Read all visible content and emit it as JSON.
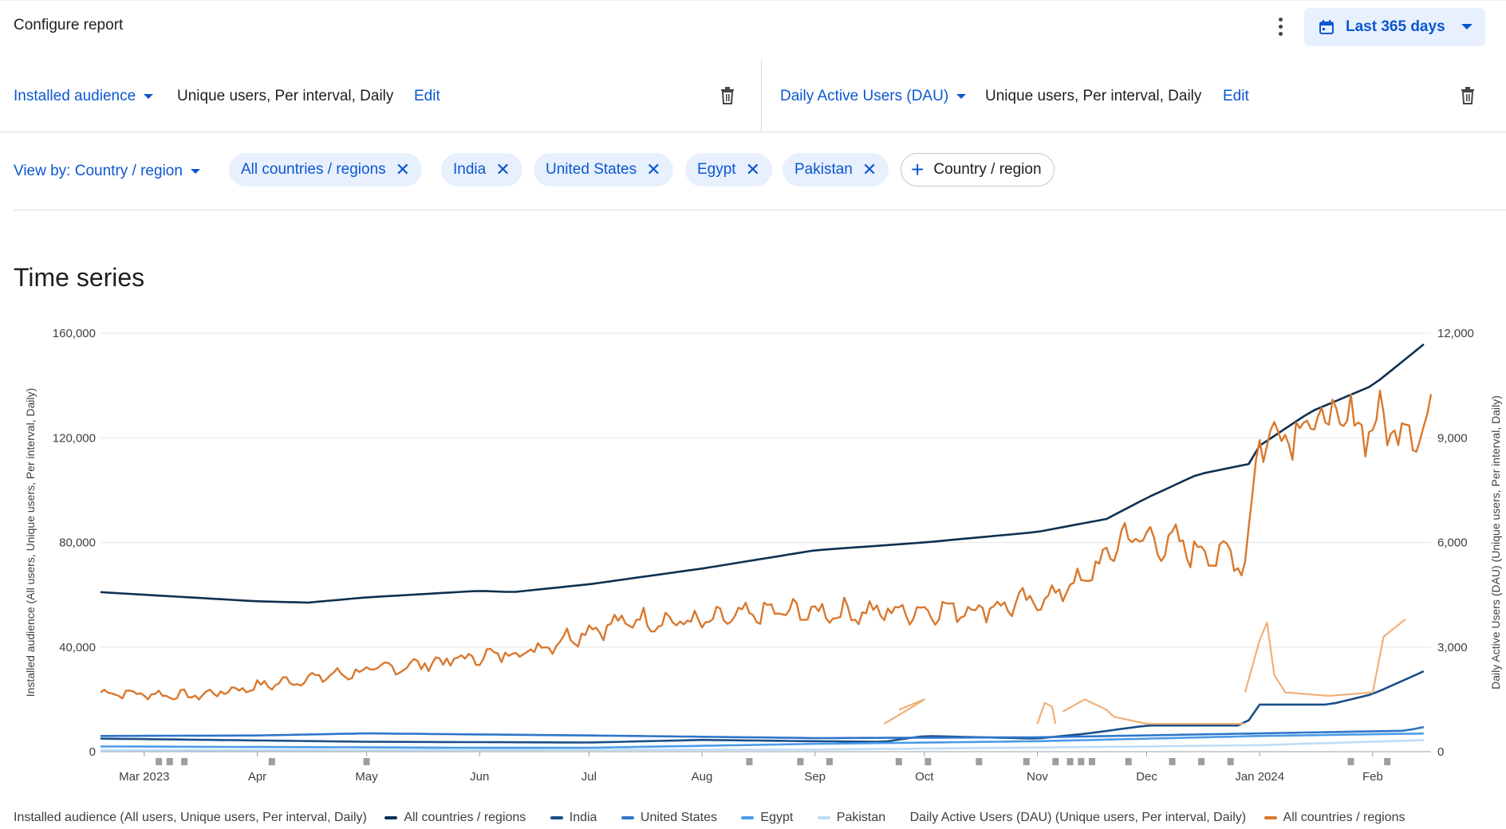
{
  "header": {
    "title": "Configure report",
    "date_range_label": "Last 365 days"
  },
  "metrics": {
    "left": {
      "selector_label": "Installed audience",
      "description": "Unique users, Per interval, Daily",
      "edit_label": "Edit"
    },
    "right": {
      "selector_label": "Daily Active Users (DAU)",
      "description": "Unique users, Per interval, Daily",
      "edit_label": "Edit"
    }
  },
  "filters": {
    "view_by_label": "View by: Country / region",
    "chips": [
      "All countries / regions",
      "India",
      "United States",
      "Egypt",
      "Pakistan"
    ],
    "add_label": "Country / region"
  },
  "section": {
    "title": "Time series"
  },
  "colors": {
    "all_countries": "#0d3050",
    "india": "#1a4f8a",
    "united_states": "#2e75c9",
    "egypt": "#4c9be8",
    "pakistan": "#bfdcf7",
    "dau_all": "#d9782d",
    "dau_light": "#f0b07a"
  },
  "chart_data": {
    "type": "line",
    "title": "",
    "x_axis_ticks": [
      "Mar 2023",
      "Apr",
      "May",
      "Jun",
      "Jul",
      "Aug",
      "Sep",
      "Oct",
      "Nov",
      "Dec",
      "Jan 2024",
      "Feb"
    ],
    "x_range": [
      "2023-02-17",
      "2024-02-17"
    ],
    "y_left": {
      "label": "Installed audience (All users, Unique users, Per interval, Daily)",
      "ticks": [
        "0",
        "40,000",
        "80,000",
        "120,000",
        "160,000"
      ],
      "range": [
        0,
        160000
      ]
    },
    "y_right": {
      "label": "Daily Active Users (DAU) (Unique users, Per interval, Daily)",
      "ticks": [
        "0",
        "3,000",
        "6,000",
        "9,000",
        "12,000"
      ],
      "range": [
        0,
        12000
      ]
    },
    "grid": true,
    "legend_placement": "bottom",
    "legend": {
      "left_group_title": "Installed audience (All users, Unique users, Per interval, Daily)",
      "left_items": [
        "All countries / regions",
        "India",
        "United States",
        "Egypt",
        "Pakistan"
      ],
      "right_group_title": "Daily Active Users (DAU) (Unique users, Per interval, Daily)",
      "right_items": [
        "All countries / regions"
      ]
    },
    "series": [
      {
        "name": "All countries / regions",
        "axis": "left",
        "color": "#0d3050",
        "x": [
          "2023-02-17",
          "2023-03-01",
          "2023-04-01",
          "2023-04-15",
          "2023-05-01",
          "2023-06-01",
          "2023-06-10",
          "2023-07-01",
          "2023-08-01",
          "2023-09-01",
          "2023-10-01",
          "2023-11-01",
          "2023-11-20",
          "2023-12-01",
          "2023-12-15",
          "2023-12-29",
          "2024-01-01",
          "2024-01-15",
          "2024-02-01",
          "2024-02-17"
        ],
        "values": [
          61000,
          60000,
          57500,
          57000,
          59000,
          61500,
          61000,
          64000,
          70000,
          77000,
          80000,
          84000,
          89000,
          97000,
          106000,
          110000,
          117000,
          130000,
          140000,
          158000
        ]
      },
      {
        "name": "India",
        "axis": "left",
        "color": "#1a4f8a",
        "x": [
          "2023-02-17",
          "2023-05-01",
          "2023-07-01",
          "2023-08-01",
          "2023-09-01",
          "2023-09-20",
          "2023-10-01",
          "2023-11-01",
          "2023-11-15",
          "2023-12-01",
          "2023-12-28",
          "2024-01-01",
          "2024-01-20",
          "2024-02-01",
          "2024-02-17"
        ],
        "values": [
          5000,
          3800,
          3500,
          4500,
          4000,
          3800,
          6000,
          5000,
          7000,
          10000,
          10000,
          18000,
          18000,
          22000,
          32000
        ]
      },
      {
        "name": "United States",
        "axis": "left",
        "color": "#2e75c9",
        "x": [
          "2023-02-17",
          "2023-04-01",
          "2023-05-01",
          "2023-07-01",
          "2023-09-01",
          "2023-11-01",
          "2024-01-01",
          "2024-02-10",
          "2024-02-17"
        ],
        "values": [
          6000,
          6200,
          7000,
          6200,
          5200,
          5500,
          7000,
          8000,
          10000
        ]
      },
      {
        "name": "Egypt",
        "axis": "left",
        "color": "#4c9be8",
        "x": [
          "2023-02-17",
          "2023-06-01",
          "2023-07-01",
          "2023-09-01",
          "2023-11-01",
          "2024-01-01",
          "2024-02-17"
        ],
        "values": [
          2000,
          1500,
          1500,
          3000,
          4000,
          6000,
          7000
        ]
      },
      {
        "name": "Pakistan",
        "axis": "left",
        "color": "#bfdcf7",
        "x": [
          "2023-02-17",
          "2023-09-01",
          "2023-12-01",
          "2024-01-01",
          "2024-02-17"
        ],
        "values": [
          500,
          800,
          2000,
          2500,
          4500
        ]
      },
      {
        "name": "All countries / regions",
        "axis": "right",
        "color": "#d9782d",
        "x": [
          "2023-02-17",
          "2023-03-15",
          "2023-04-15",
          "2023-05-15",
          "2023-06-15",
          "2023-07-01",
          "2023-07-15",
          "2023-08-01",
          "2023-08-20",
          "2023-09-15",
          "2023-10-15",
          "2023-11-01",
          "2023-11-15",
          "2023-11-25",
          "2023-12-10",
          "2023-12-28",
          "2024-01-01",
          "2024-01-15",
          "2024-02-17"
        ],
        "values": [
          1700,
          1600,
          2100,
          2500,
          2900,
          3500,
          3800,
          3700,
          4000,
          4000,
          4100,
          4300,
          5000,
          6200,
          5900,
          5500,
          9000,
          9500,
          9300
        ]
      }
    ]
  }
}
